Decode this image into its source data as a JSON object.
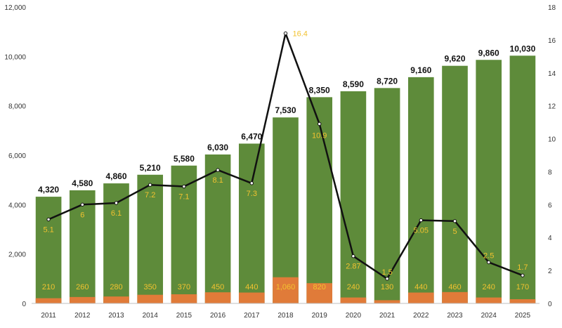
{
  "chart_data": {
    "type": "bar",
    "categories": [
      "2011",
      "2012",
      "2013",
      "2014",
      "2015",
      "2016",
      "2017",
      "2018",
      "2019",
      "2020",
      "2021",
      "2022",
      "2023",
      "2024",
      "2025"
    ],
    "series": [
      {
        "values": [
          4110,
          4320,
          4580,
          4860,
          5210,
          5580,
          6030,
          6470,
          7530,
          8350,
          8590,
          8720,
          9160,
          9620,
          9860
        ],
        "color": "#5e8b3a",
        "stack": "total"
      },
      {
        "values": [
          210,
          260,
          280,
          350,
          370,
          450,
          440,
          1060,
          820,
          240,
          130,
          440,
          460,
          240,
          170
        ],
        "color": "#e07b39",
        "stack": "total"
      },
      {
        "values": [
          5.1,
          6,
          6.1,
          7.2,
          7.1,
          8.1,
          7.3,
          16.4,
          10.9,
          2.87,
          1.5,
          5.05,
          5,
          2.5,
          1.7
        ],
        "type": "line",
        "axis": "right",
        "color": "#111111"
      }
    ],
    "totals": [
      4320,
      4580,
      4860,
      5210,
      5580,
      6030,
      6470,
      7530,
      8350,
      8590,
      8720,
      9160,
      9620,
      9860,
      10030
    ],
    "total_labels": [
      "4,320",
      "4,580",
      "4,860",
      "5,210",
      "5,580",
      "6,030",
      "6,470",
      "7,530",
      "8,350",
      "8,590",
      "8,720",
      "9,160",
      "9,620",
      "9,860",
      "10,030"
    ],
    "increment_labels": [
      "210",
      "260",
      "280",
      "350",
      "370",
      "450",
      "440",
      "1,060",
      "820",
      "240",
      "130",
      "440",
      "460",
      "240",
      "170"
    ],
    "line_labels": [
      "5.1",
      "6",
      "6.1",
      "7.2",
      "7.1",
      "8.1",
      "7.3",
      "16.4",
      "10.9",
      "2.87",
      "1.5",
      "5.05",
      "5",
      "2.5",
      "1.7"
    ],
    "ylim": [
      0,
      12000
    ],
    "yticks": [
      "0",
      "2,000",
      "4,000",
      "6,000",
      "8,000",
      "10,000",
      "12,000"
    ],
    "y2lim": [
      0,
      18
    ],
    "y2ticks": [
      "0",
      "2",
      "4",
      "6",
      "8",
      "10",
      "12",
      "14",
      "16",
      "18"
    ],
    "grid": false,
    "legend": "none"
  }
}
